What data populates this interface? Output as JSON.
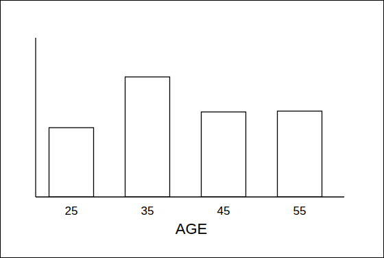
{
  "chart_data": {
    "type": "bar",
    "x_label": "AGE",
    "categories": [
      "25",
      "35",
      "45",
      "55"
    ],
    "values": [
      43.5,
      75.4,
      53.4,
      53.9
    ],
    "color": "#ffffff",
    "ylim": [
      0,
      100
    ],
    "grid": false,
    "tick_labels": "x"
  }
}
